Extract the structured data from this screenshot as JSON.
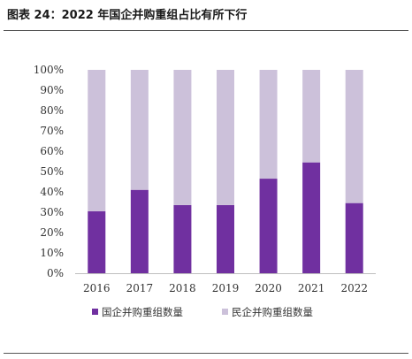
{
  "figure": {
    "title": "图表 24：2022 年国企并购重组占比有所下行"
  },
  "chart_data": {
    "type": "bar",
    "stacked": true,
    "categories": [
      "2016",
      "2017",
      "2018",
      "2019",
      "2020",
      "2021",
      "2022"
    ],
    "series": [
      {
        "name": "国企并购重组数量",
        "color": "#7030a0",
        "values": [
          30.5,
          41,
          33.5,
          33.5,
          46.5,
          54.5,
          34.5
        ]
      },
      {
        "name": "民企并购重组数量",
        "color": "#ccc1da",
        "values": [
          69.5,
          59,
          66.5,
          66.5,
          53.5,
          45.5,
          65.5
        ]
      }
    ],
    "ylim": [
      0,
      100
    ],
    "yticks": [
      "0%",
      "10%",
      "20%",
      "30%",
      "40%",
      "50%",
      "60%",
      "70%",
      "80%",
      "90%",
      "100%"
    ],
    "grid": false,
    "legend_position": "bottom"
  }
}
